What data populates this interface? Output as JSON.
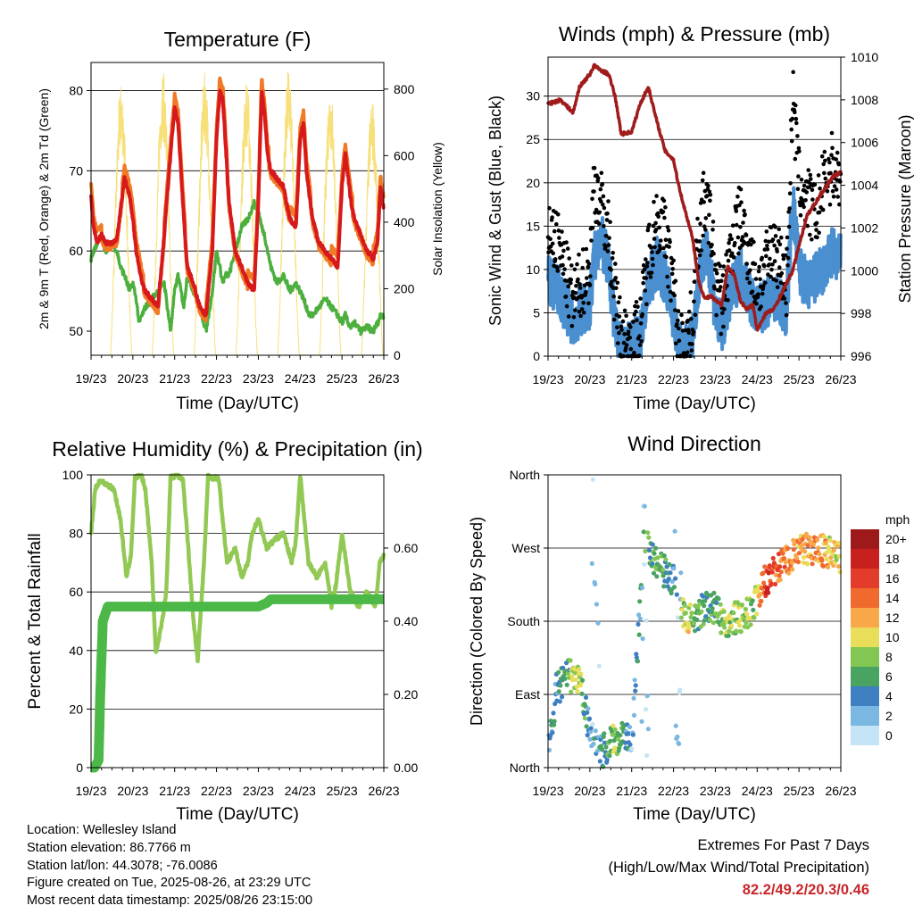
{
  "colors": {
    "temp_2m": "#d7191c",
    "temp_9m": "#f07a26",
    "dewpoint": "#4caf3e",
    "insolation": "#f7e07a",
    "wind": "#4a8fd0",
    "gust": "#000000",
    "pressure": "#a01c1c",
    "rh": "#92c954",
    "rain": "#4cb847"
  },
  "time_axis": {
    "ticks": [
      "19/23",
      "20/23",
      "21/23",
      "22/23",
      "23/23",
      "24/23",
      "25/23",
      "26/23"
    ],
    "label": "Time (Day/UTC)"
  },
  "chart_data": [
    {
      "id": "temperature",
      "type": "line",
      "title": "Temperature (F)",
      "ylabel": "2m & 9m T (Red, Orange) & 2m Td (Green)",
      "y2label": "Solar Insolation (Yellow)",
      "ylim": [
        47,
        83.5
      ],
      "yticks": [
        50,
        60,
        70,
        80
      ],
      "y2lim": [
        0,
        880
      ],
      "y2ticks": [
        0,
        200,
        400,
        600,
        800
      ],
      "x": [
        0,
        0.06,
        0.15,
        0.25,
        0.35,
        0.5,
        0.62,
        0.7,
        0.8,
        0.92,
        1.0,
        1.08,
        1.15,
        1.22,
        1.3,
        1.45,
        1.6,
        1.75,
        1.9,
        2.0,
        2.08,
        2.15,
        2.22,
        2.3,
        2.45,
        2.6,
        2.75,
        2.9,
        3.0,
        3.08,
        3.15,
        3.22,
        3.3,
        3.45,
        3.6,
        3.75,
        3.9,
        4.0,
        4.08,
        4.15,
        4.22,
        4.3,
        4.45,
        4.6,
        4.75,
        4.9,
        5.0,
        5.08,
        5.15,
        5.22,
        5.3,
        5.45,
        5.6,
        5.75,
        5.9,
        6.0,
        6.08,
        6.15,
        6.22,
        6.3,
        6.45,
        6.6,
        6.75,
        6.85,
        6.92,
        7.0
      ],
      "series": [
        {
          "name": "2m & 9m T (Red, Orange)",
          "values": [
            67,
            63,
            61,
            62,
            61,
            61,
            61.5,
            65,
            69,
            67,
            64,
            60,
            58,
            56,
            55,
            54,
            53,
            62,
            72,
            78,
            76,
            70,
            64,
            58,
            56,
            53,
            52,
            60,
            74,
            80,
            79,
            73,
            66,
            60,
            58,
            56,
            55,
            66,
            80,
            77,
            72,
            70,
            69,
            68,
            64,
            63,
            74,
            76,
            70,
            67,
            64,
            61,
            60,
            59,
            58,
            68,
            72,
            69,
            66,
            64,
            62,
            60,
            59,
            61,
            68,
            65
          ]
        },
        {
          "name": "2m Td (Green)",
          "values": [
            59,
            60,
            61,
            61.5,
            60,
            61,
            60,
            58,
            57,
            55,
            56,
            54,
            51,
            52,
            53,
            54,
            55,
            56,
            50,
            55,
            57,
            55,
            53,
            57,
            55,
            53,
            50,
            55,
            60,
            58,
            56,
            57,
            57,
            60,
            63,
            64,
            66,
            65,
            63,
            62,
            60,
            58,
            56,
            57,
            55,
            56,
            55,
            54,
            53,
            52,
            52,
            53,
            54,
            53,
            52,
            51,
            52,
            51,
            50.5,
            51,
            50,
            50.5,
            50,
            51,
            52,
            52
          ]
        },
        {
          "name": "Solar Insolation (Yellow)",
          "peaks": [
            820,
            860,
            850,
            830,
            860,
            820,
            770,
            480
          ]
        }
      ]
    },
    {
      "id": "winds",
      "type": "scatter",
      "title": "Winds (mph) & Pressure (mb)",
      "ylabel": "Sonic Wind & Gust (Blue, Black)",
      "y2label": "Station Pressure (Maroon)",
      "ylim": [
        0,
        34.5
      ],
      "yticks": [
        0,
        5,
        10,
        15,
        20,
        25,
        30
      ],
      "y2lim": [
        996,
        1010
      ],
      "y2ticks": [
        996,
        998,
        1000,
        1002,
        1004,
        1006,
        1008,
        1010
      ],
      "x": [
        0,
        0.3,
        0.6,
        0.75,
        1.0,
        1.1,
        1.25,
        1.45,
        1.6,
        1.75,
        2.0,
        2.2,
        2.4,
        2.6,
        2.8,
        3.0,
        3.1,
        3.25,
        3.45,
        3.6,
        3.75,
        3.9,
        4.0,
        4.15,
        4.3,
        4.45,
        4.6,
        4.75,
        4.9,
        5.0,
        5.2,
        5.4,
        5.55,
        5.7,
        5.85,
        6.0,
        6.2,
        6.4,
        6.6,
        6.8,
        7.0
      ],
      "series": [
        {
          "name": "Sonic Wind (Blue)",
          "values": [
            9,
            7,
            4,
            5,
            6,
            11,
            14,
            10,
            4,
            0.5,
            1,
            2,
            8,
            11,
            9,
            5,
            1,
            0.5,
            2,
            9,
            12,
            10,
            5,
            3,
            6,
            8,
            10,
            8,
            6,
            5,
            6,
            7,
            6,
            5,
            18,
            10,
            8,
            9,
            10,
            12,
            11
          ]
        },
        {
          "name": "Gust (Black)",
          "values": [
            15,
            12,
            6,
            8,
            10,
            20,
            18,
            14,
            7,
            2,
            2,
            3,
            12,
            16,
            14,
            8,
            2,
            1,
            4,
            14,
            18,
            15,
            9,
            6,
            10,
            14,
            16,
            13,
            10,
            8,
            10,
            13,
            11,
            8,
            30,
            20,
            18,
            16,
            20,
            22,
            20
          ]
        },
        {
          "name": "Station Pressure (Maroon)",
          "values": [
            1007.8,
            1008.0,
            1007.4,
            1008.6,
            1009.2,
            1009.6,
            1009.4,
            1009.2,
            1008.2,
            1006.4,
            1006.5,
            1007.8,
            1008.6,
            1007.0,
            1005.6,
            1005.2,
            1004.2,
            1003.0,
            1001.6,
            999.5,
            998.7,
            998.8,
            998.6,
            998.4,
            1000.2,
            999.8,
            998.6,
            998.2,
            998.4,
            997.2,
            998.0,
            998.2,
            998.8,
            999.4,
            1000.0,
            1001.2,
            1002.6,
            1003.2,
            1003.8,
            1004.4,
            1004.6
          ]
        }
      ]
    },
    {
      "id": "humidity",
      "type": "line",
      "title": "Relative Humidity (%) & Precipitation (in)",
      "ylabel": "Percent & Total Rainfall",
      "ylim": [
        0,
        100
      ],
      "yticks": [
        0,
        20,
        40,
        60,
        80,
        100
      ],
      "y2lim": [
        0,
        0.8
      ],
      "y2ticks": [
        "0.00",
        "0.20",
        "0.40",
        "0.60"
      ],
      "x": [
        0,
        0.1,
        0.2,
        0.35,
        0.55,
        0.7,
        0.85,
        0.95,
        1.05,
        1.2,
        1.3,
        1.45,
        1.55,
        1.7,
        1.8,
        1.9,
        2.05,
        2.2,
        2.3,
        2.45,
        2.55,
        2.7,
        2.8,
        2.9,
        3.05,
        3.25,
        3.45,
        3.6,
        3.75,
        3.85,
        4.0,
        4.2,
        4.4,
        4.6,
        4.8,
        4.9,
        5.0,
        5.2,
        5.4,
        5.6,
        5.75,
        5.85,
        6.0,
        6.2,
        6.4,
        6.6,
        6.8,
        6.9,
        7.0
      ],
      "series": [
        {
          "name": "Relative Humidity",
          "values": [
            80,
            95,
            98,
            97,
            95,
            85,
            65,
            72,
            99,
            100,
            95,
            70,
            39,
            50,
            60,
            99,
            100,
            98,
            80,
            50,
            37,
            70,
            100,
            99,
            99,
            70,
            75,
            65,
            70,
            80,
            85,
            75,
            78,
            80,
            70,
            78,
            100,
            70,
            65,
            70,
            55,
            62,
            80,
            60,
            55,
            60,
            55,
            70,
            72
          ]
        },
        {
          "name": "Total Rainfall",
          "x": [
            0,
            0.08,
            0.18,
            0.22,
            0.28,
            0.4,
            1.0,
            2.0,
            3.0,
            4.0,
            4.2,
            4.3,
            5.0,
            6.0,
            7.0
          ],
          "values": [
            0,
            0,
            0.02,
            0.2,
            0.4,
            0.44,
            0.44,
            0.44,
            0.44,
            0.44,
            0.45,
            0.46,
            0.46,
            0.46,
            0.46
          ]
        }
      ]
    },
    {
      "id": "wind_direction",
      "type": "scatter",
      "title": "Wind Direction",
      "ylabel": "Direction (Colored By Speed)",
      "yticks": [
        "North",
        "East",
        "South",
        "West",
        "North"
      ],
      "ylim": [
        0,
        360
      ],
      "legend": {
        "title": "mph",
        "labels": [
          "20+",
          "18",
          "16",
          "14",
          "12",
          "10",
          "8",
          "6",
          "4",
          "2",
          "0"
        ],
        "colors": [
          "#9e1a1a",
          "#c8201e",
          "#e33c2a",
          "#f06a2e",
          "#f8a849",
          "#e9de5a",
          "#82c653",
          "#4aa461",
          "#3d7fc0",
          "#7ab7e2",
          "#c5e4f5"
        ]
      }
    }
  ],
  "info": {
    "location": "Location: Wellesley Island",
    "elevation": "Station elevation: 86.7766 m",
    "latlon": "Station lat/lon: 44.3078; -76.0086",
    "created": "Figure created on Tue, 2025-08-26, at 23:29 UTC",
    "recent": "Most recent data timestamp: 2025/08/26 23:15:00"
  },
  "extremes": {
    "title": "Extremes For Past 7 Days",
    "subtitle": "(High/Low/Max Wind/Total Precipitation)",
    "values": "82.2/49.2/20.3/0.46"
  }
}
